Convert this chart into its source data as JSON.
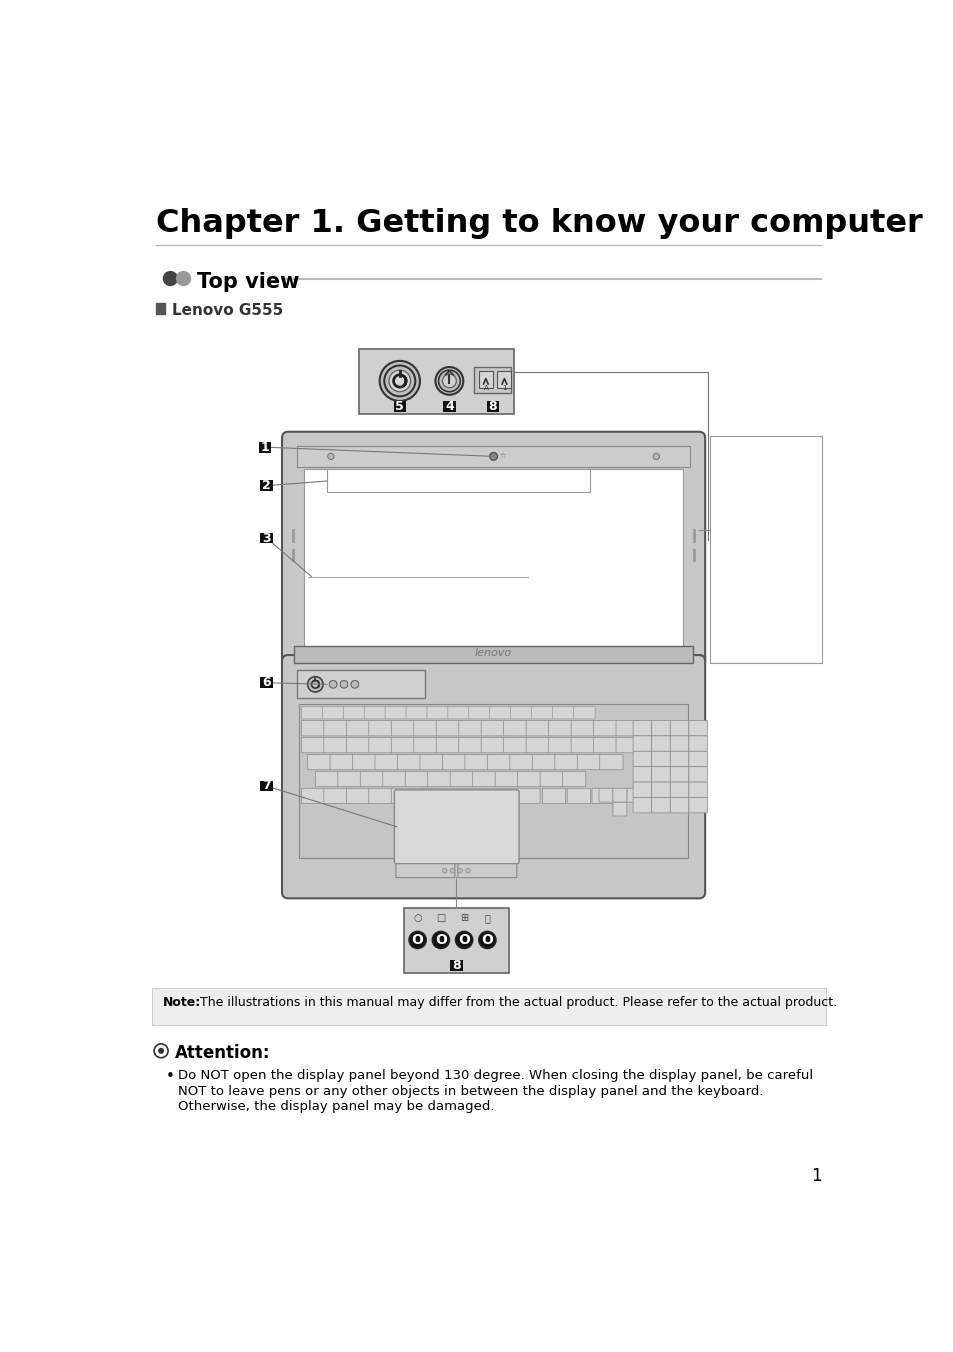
{
  "title": "Chapter 1. Getting to know your computer",
  "section_title": "Top view",
  "subsection": "Lenovo G555",
  "note_bold": "Note:",
  "note_text": " The illustrations in this manual may differ from the actual product. Please refer to the actual product.",
  "attention_title": "Attention:",
  "bullet_line1": "Do NOT open the display panel beyond 130 degree. When closing the display panel, be careful",
  "bullet_line2": "NOT to leave pens or any other objects in between the display panel and the keyboard.",
  "bullet_line3": "Otherwise, the display panel may be damaged.",
  "page_number": "1",
  "bg_color": "#ffffff",
  "gray_light": "#cccccc",
  "gray_med": "#aaaaaa",
  "gray_dark": "#555555",
  "black": "#000000",
  "white": "#ffffff"
}
